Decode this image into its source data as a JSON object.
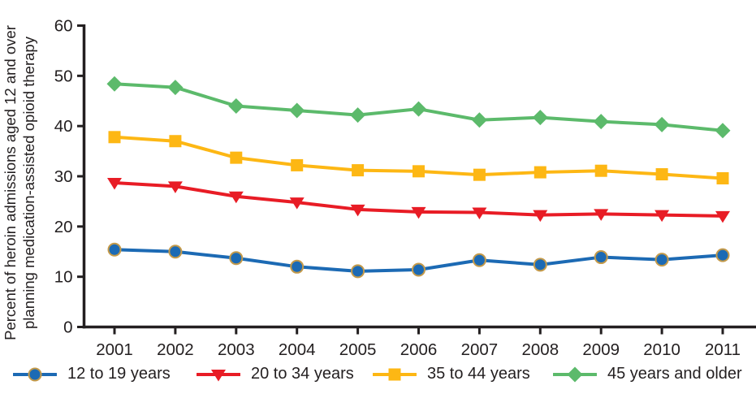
{
  "chart_data": {
    "type": "line",
    "title": "",
    "xlabel": "",
    "ylabel": "Percent of heroin admissions aged 12 and over planning medication-assisted opioid therapy",
    "ylabel_lines": [
      "Percent of heroin admissions aged 12 and over",
      "planning medication-assisted opioid therapy"
    ],
    "x": [
      2001,
      2002,
      2003,
      2004,
      2005,
      2006,
      2007,
      2008,
      2009,
      2010,
      2011
    ],
    "y_ticks": [
      0,
      10,
      20,
      30,
      40,
      50,
      60
    ],
    "ylim": [
      0,
      60
    ],
    "grid": false,
    "legend_position": "bottom",
    "axis_color": "#231f20",
    "series": [
      {
        "name": "12 to 19 years",
        "marker": "circle",
        "color": "#1c6ab4",
        "marker_edge": "#c49a4a",
        "values": [
          15.4,
          15.0,
          13.7,
          12.0,
          11.1,
          11.4,
          13.3,
          12.4,
          13.9,
          13.4,
          14.3
        ]
      },
      {
        "name": "20 to 34 years",
        "marker": "triangle-down",
        "color": "#e81c25",
        "marker_edge": null,
        "values": [
          28.7,
          28.0,
          26.0,
          24.8,
          23.4,
          22.9,
          22.8,
          22.3,
          22.5,
          22.3,
          22.1
        ]
      },
      {
        "name": "35 to 44 years",
        "marker": "square",
        "color": "#fdb714",
        "marker_edge": null,
        "values": [
          37.8,
          37.0,
          33.7,
          32.2,
          31.2,
          31.0,
          30.3,
          30.8,
          31.1,
          30.4,
          29.6
        ]
      },
      {
        "name": "45 years and older",
        "marker": "diamond",
        "color": "#5cba6b",
        "marker_edge": null,
        "values": [
          48.4,
          47.7,
          44.0,
          43.1,
          42.2,
          43.4,
          41.2,
          41.7,
          40.9,
          40.3,
          39.1
        ]
      }
    ]
  }
}
